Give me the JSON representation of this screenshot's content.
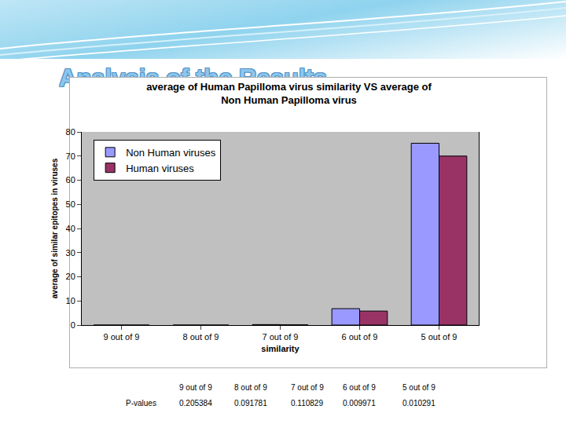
{
  "heading": "Analysis of the Results",
  "chart_data": {
    "type": "bar",
    "title": "average of Human Papilloma virus similarity VS average of\nNon Human Papilloma virus",
    "x_label": "similarity",
    "y_label": "average of similar epitopes in viruses",
    "categories": [
      "9 out of 9",
      "8 out of 9",
      "7 out of 9",
      "6 out of 9",
      "5 out of 9"
    ],
    "series": [
      {
        "name": "Non Human viruses",
        "color": "#9999ff",
        "values": [
          0,
          0,
          0.2,
          6.8,
          75.3
        ]
      },
      {
        "name": "Human viruses",
        "color": "#993366",
        "values": [
          0,
          0,
          0.1,
          5.8,
          70
        ]
      }
    ],
    "ylim": [
      0,
      80
    ],
    "yticks": [
      0,
      10,
      20,
      30,
      40,
      50,
      60,
      70,
      80
    ],
    "grid": false,
    "legend": "upper left"
  },
  "table": {
    "header": [
      "9 out of 9",
      "8 out of 9",
      "7 out of 9",
      "6 out of 9",
      "5 out of 9"
    ],
    "rows": [
      [
        "P-values",
        0.205384,
        0.091781,
        0.110829,
        0.009971,
        0.010291
      ]
    ]
  }
}
